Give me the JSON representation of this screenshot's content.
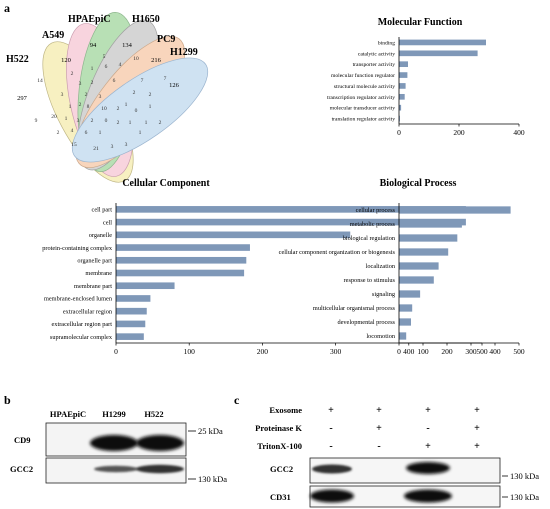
{
  "panels": {
    "a": "a",
    "b": "b",
    "c": "c"
  },
  "venn": {
    "sets": [
      {
        "name": "H522",
        "unique": "297",
        "color": "#f2e58f"
      },
      {
        "name": "A549",
        "unique": "120",
        "color": "#f4b2c4"
      },
      {
        "name": "HPAEpiC",
        "unique": "94",
        "color": "#7fc77a"
      },
      {
        "name": "H1650",
        "unique": "134",
        "color": "#b3b3b3"
      },
      {
        "name": "PC9",
        "unique": "216",
        "color": "#f3b487"
      },
      {
        "name": "H1299",
        "unique": "126",
        "color": "#a9cbe8"
      }
    ],
    "regions": [
      "14",
      "2",
      "5",
      "6",
      "4",
      "10",
      "7",
      "1",
      "3",
      "2",
      "6",
      "7",
      "3",
      "2",
      "3",
      "2",
      "2",
      "1",
      "1",
      "2",
      "8",
      "10",
      "2",
      "0",
      "1",
      "20",
      "1",
      "9",
      "3",
      "2",
      "0",
      "2",
      "1",
      "1",
      "2",
      "2",
      "4",
      "6",
      "1",
      "1",
      "15",
      "21",
      "3",
      "3"
    ]
  },
  "chart_data": [
    {
      "type": "bar",
      "orientation": "horizontal",
      "title": "Molecular Function",
      "categories": [
        "binding",
        "catalytic activity",
        "transporter activity",
        "molecular function regulator",
        "structural molecule activity",
        "transcription regulator activity",
        "molecular transducer activity",
        "translation regulator activity"
      ],
      "values": [
        290,
        262,
        30,
        28,
        22,
        19,
        7,
        3
      ],
      "xlim": [
        0,
        400
      ],
      "ticks": [
        "0",
        "200",
        "400"
      ],
      "color": "#7f98b8"
    },
    {
      "type": "bar",
      "orientation": "horizontal",
      "title": "Cellular Component",
      "categories": [
        "cell part",
        "cell",
        "organelle",
        "protein-containing complex",
        "organelle part",
        "membrane",
        "membrane part",
        "membrane-enclosed lumen",
        "extracellular region",
        "extracellular region part",
        "supramolecular complex"
      ],
      "values": [
        478,
        478,
        320,
        183,
        178,
        175,
        80,
        47,
        42,
        40,
        38
      ],
      "xlim": [
        0,
        500
      ],
      "ticks": [
        "0",
        "100",
        "200",
        "300",
        "400",
        "500"
      ],
      "color": "#7f98b8"
    },
    {
      "type": "bar",
      "orientation": "horizontal",
      "title": "Biological Process",
      "categories": [
        "cellular process",
        "metabolic process",
        "biological regulation",
        "cellular component organization or biogenesis",
        "localization",
        "response to stimulus",
        "signaling",
        "multicellular organismal process",
        "developmental process",
        "locomotion"
      ],
      "values": [
        465,
        262,
        243,
        205,
        165,
        145,
        88,
        55,
        50,
        30
      ],
      "xlim": [
        0,
        500
      ],
      "ticks": [
        "0",
        "100",
        "200",
        "300",
        "400",
        "500"
      ],
      "color": "#7f98b8"
    }
  ],
  "blot_b": {
    "lanes": [
      "HPAEpiC",
      "H1299",
      "H522"
    ],
    "rows": [
      {
        "name": "CD9",
        "marker": "25 kDa"
      },
      {
        "name": "GCC2",
        "marker": "130 kDa"
      }
    ]
  },
  "blot_c": {
    "conditions": [
      {
        "label": "Exosome",
        "signs": [
          "+",
          "+",
          "+",
          "+"
        ]
      },
      {
        "label": "Proteinase K",
        "signs": [
          "-",
          "+",
          "-",
          "+"
        ]
      },
      {
        "label": "TritonX-100",
        "signs": [
          "-",
          "-",
          "+",
          "+"
        ]
      }
    ],
    "rows": [
      {
        "name": "GCC2",
        "marker": "130 kDa"
      },
      {
        "name": "CD31",
        "marker": "130 kDa"
      }
    ]
  }
}
